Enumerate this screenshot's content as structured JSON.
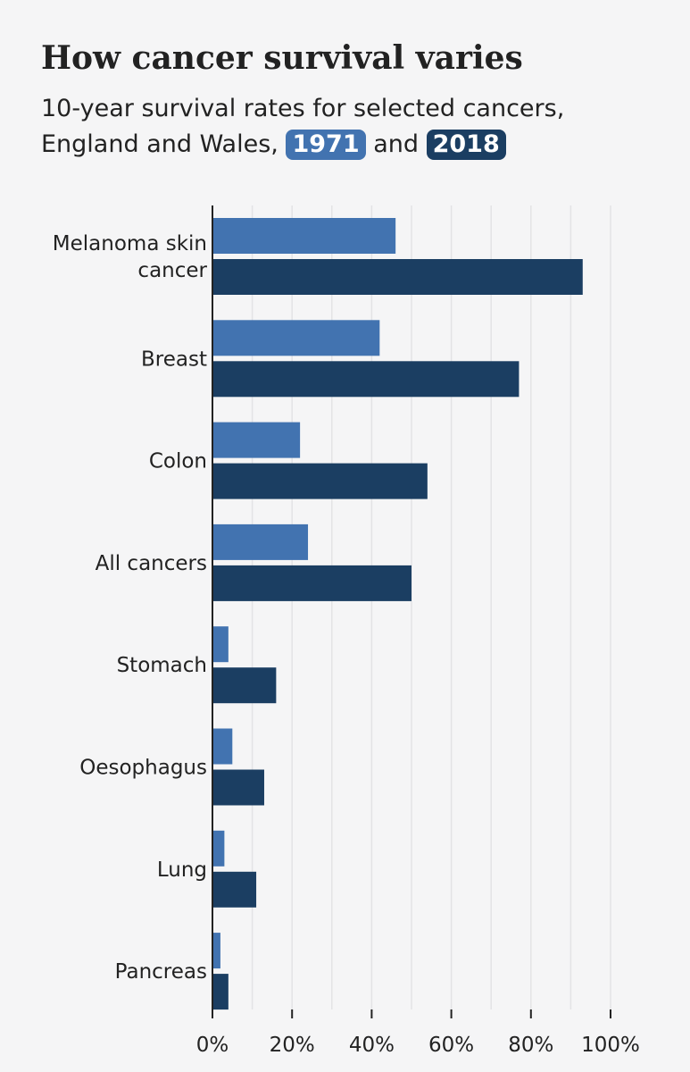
{
  "title": "How cancer survival varies",
  "subtitle": {
    "line1": "10-year survival rates for selected cancers,",
    "line2_prefix": "England and Wales,",
    "pill_1971": "1971",
    "joiner": "and",
    "pill_2018": "2018"
  },
  "colors": {
    "series_1971": "#4273b0",
    "series_2018": "#1b3e62",
    "gridline": "#e3e3e5",
    "axis": "#222222",
    "background": "#f5f5f6"
  },
  "chart_data": {
    "type": "bar",
    "orientation": "horizontal",
    "categories": [
      [
        "Melanoma skin",
        "cancer"
      ],
      [
        "Breast"
      ],
      [
        "Colon"
      ],
      [
        "All cancers"
      ],
      [
        "Stomach"
      ],
      [
        "Oesophagus"
      ],
      [
        "Lung"
      ],
      [
        "Pancreas"
      ]
    ],
    "series": [
      {
        "name": "1971",
        "values": [
          46,
          42,
          22,
          24,
          4,
          5,
          3,
          2
        ]
      },
      {
        "name": "2018",
        "values": [
          93,
          77,
          54,
          50,
          16,
          13,
          11,
          4
        ]
      }
    ],
    "xlim": [
      0,
      100
    ],
    "xticks": [
      "0%",
      "20%",
      "40%",
      "60%",
      "80%",
      "100%"
    ],
    "xtick_values": [
      0,
      20,
      40,
      60,
      80,
      100
    ],
    "grid": true,
    "legend": "inline in subtitle"
  }
}
